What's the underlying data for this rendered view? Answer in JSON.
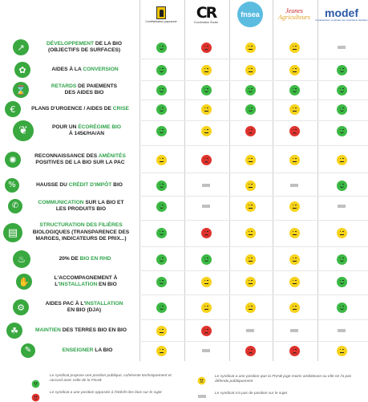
{
  "colors": {
    "green": "#3cb944",
    "yellow": "#f6d21a",
    "red": "#e0332d",
    "none": "#c0c0c0",
    "accent": "#2fa34a"
  },
  "organizations": [
    {
      "key": "conf",
      "logo_text": "Confédération paysanne",
      "icon": "confederation-paysanne-logo"
    },
    {
      "key": "cr",
      "logo_text": "CR",
      "logo_caption": "Coordination Rurale",
      "icon": "coordination-rurale-logo"
    },
    {
      "key": "fnsea",
      "logo_text": "fnsea",
      "icon": "fnsea-logo"
    },
    {
      "key": "ja",
      "logo_text": "Jeunes Agriculteurs",
      "icon": "jeunes-agriculteurs-logo"
    },
    {
      "key": "modef",
      "logo_text": "modef",
      "logo_caption": "Confédération syndicale des exploitants familiaux",
      "icon": "modef-logo"
    }
  ],
  "rows": [
    {
      "icon": "chart-growth-icon",
      "parts": [
        [
          {
            "t": "Développement",
            "h": true
          },
          {
            "t": " de la bio"
          }
        ],
        [
          {
            "t": "(objectifs de surfaces)"
          }
        ]
      ],
      "statuses": [
        "green",
        "red",
        "yellow",
        "yellow",
        "none"
      ]
    },
    {
      "icon": "plant-hand-icon",
      "parts": [
        [
          {
            "t": "Aides à la "
          },
          {
            "t": "conversion",
            "h": true
          }
        ]
      ],
      "statuses": [
        "green",
        "yellow",
        "yellow",
        "yellow",
        "green"
      ]
    },
    {
      "icon": "late-payment-icon",
      "parts": [
        [
          {
            "t": "Retards",
            "h": true
          },
          {
            "t": " de paiements"
          }
        ],
        [
          {
            "t": "des aides bio"
          }
        ]
      ],
      "statuses": [
        "green",
        "green",
        "green",
        "green",
        "green"
      ]
    },
    {
      "icon": "crisis-aid-icon",
      "parts": [
        [
          {
            "t": "Plans d'urgence / aides de "
          },
          {
            "t": "crise",
            "h": true
          }
        ]
      ],
      "statuses": [
        "green",
        "yellow",
        "green",
        "yellow",
        "green"
      ]
    },
    {
      "icon": "eco-scheme-icon",
      "parts": [
        [
          {
            "t": "Pour un "
          },
          {
            "t": "écorégime bio",
            "h": true
          }
        ],
        [
          {
            "t": "à 145€/ha/an"
          }
        ]
      ],
      "statuses": [
        "green",
        "yellow",
        "red",
        "red",
        "green"
      ]
    },
    {
      "icon": "amenities-icon",
      "parts": [
        [
          {
            "t": "Reconnaissance des "
          },
          {
            "t": "aménités",
            "h": true
          }
        ],
        [
          {
            "t": "positives de la bio sur la PAC"
          }
        ]
      ],
      "statuses": [
        "yellow",
        "red",
        "yellow",
        "yellow",
        "yellow"
      ]
    },
    {
      "icon": "tax-credit-icon",
      "parts": [
        [
          {
            "t": "Hausse du "
          },
          {
            "t": "crédit d'impôt",
            "h": true
          },
          {
            "t": " bio"
          }
        ]
      ],
      "statuses": [
        "green",
        "none",
        "yellow",
        "none",
        "green"
      ]
    },
    {
      "icon": "megaphone-icon",
      "parts": [
        [
          {
            "t": "Communication",
            "h": true
          },
          {
            "t": " sur la bio et"
          }
        ],
        [
          {
            "t": "les produits bio"
          }
        ]
      ],
      "statuses": [
        "green",
        "none",
        "yellow",
        "yellow",
        "none"
      ]
    },
    {
      "icon": "supply-chain-icon",
      "parts": [
        [
          {
            "t": "Structuration des filières",
            "h": true
          }
        ],
        [
          {
            "t": "biologiques (transparence des"
          }
        ],
        [
          {
            "t": "marges, indicateurs de prix...)"
          }
        ]
      ],
      "statuses": [
        "green",
        "red",
        "yellow",
        "yellow",
        "yellow"
      ]
    },
    {
      "icon": "catering-icon",
      "parts": [
        [
          {
            "t": "20% de "
          },
          {
            "t": "bio en RHD",
            "h": true
          }
        ]
      ],
      "statuses": [
        "green",
        "green",
        "yellow",
        "yellow",
        "green"
      ]
    },
    {
      "icon": "support-farmer-icon",
      "parts": [
        [
          {
            "t": "L'accompagnement à"
          }
        ],
        [
          {
            "t": "l'",
            "h": false
          },
          {
            "t": "installation",
            "h": true
          },
          {
            "t": " en bio"
          }
        ]
      ],
      "statuses": [
        "green",
        "yellow",
        "yellow",
        "yellow",
        "green"
      ]
    },
    {
      "icon": "tractor-icon",
      "parts": [
        [
          {
            "t": "Aides PAC à l'"
          },
          {
            "t": "installation",
            "h": true
          }
        ],
        [
          {
            "t": "en bio (DJA)"
          }
        ]
      ],
      "statuses": [
        "green",
        "yellow",
        "yellow",
        "yellow",
        "green"
      ]
    },
    {
      "icon": "land-hand-icon",
      "parts": [
        [
          {
            "t": "Maintien",
            "h": true
          },
          {
            "t": " des terres bio en bio"
          }
        ]
      ],
      "statuses": [
        "yellow",
        "red",
        "none",
        "none",
        "none"
      ]
    },
    {
      "icon": "teaching-icon",
      "parts": [
        [
          {
            "t": "Enseigner",
            "h": true
          },
          {
            "t": " la bio"
          }
        ]
      ],
      "statuses": [
        "yellow",
        "none",
        "red",
        "red",
        "yellow"
      ]
    }
  ],
  "legend": [
    {
      "status": "green",
      "text": "Le syndicat propose une position publique, cohérente techniquement et raccord avec celle de la FNAB"
    },
    {
      "status": "yellow",
      "text": "Le syndicat a une position que la FNAB juge moins ambitieuse ou elle ne l'a pas défendu publiquement"
    },
    {
      "status": "red",
      "text": "Le syndicat a une position opposée à l'intérêt des bios sur le sujet"
    },
    {
      "status": "none",
      "text": "Le syndicat n'a pas de position sur le sujet"
    }
  ]
}
